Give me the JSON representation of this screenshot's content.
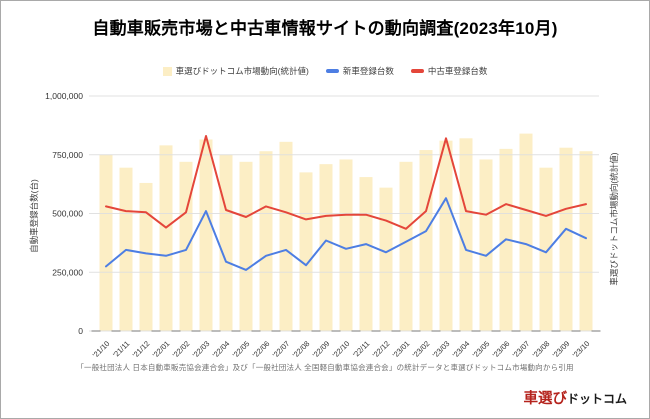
{
  "title": "自動車販売市場と中古車情報サイトの動向調査(2023年10月)",
  "chart_data": {
    "type": "bar+line combo",
    "title": "自動車販売市場と中古車情報サイトの動向調査(2023年10月)",
    "categories": [
      "'21/10",
      "'21/11",
      "'21/12",
      "'22/01",
      "'22/02",
      "'22/03",
      "'22/04",
      "'22/05",
      "'22/06",
      "'22/07",
      "'22/08",
      "'22/09",
      "'22/10",
      "'22/11",
      "'22/12",
      "'23/01",
      "'23/02",
      "'23/03",
      "'23/04",
      "'23/05",
      "'23/06",
      "'23/07",
      "'23/08",
      "'23/09",
      "'23/10"
    ],
    "series": [
      {
        "name": "車選びドットコム市場動向(統計値)",
        "type": "bar",
        "color": "#fceec5",
        "values": [
          750000,
          695000,
          630000,
          790000,
          720000,
          815000,
          750000,
          720000,
          765000,
          805000,
          675000,
          710000,
          730000,
          655000,
          610000,
          720000,
          770000,
          810000,
          820000,
          730000,
          775000,
          840000,
          695000,
          780000,
          765000
        ]
      },
      {
        "name": "新車登録台数",
        "type": "line",
        "color": "#4d7ee3",
        "values": [
          275000,
          345000,
          330000,
          320000,
          345000,
          510000,
          295000,
          260000,
          320000,
          345000,
          280000,
          385000,
          350000,
          370000,
          335000,
          380000,
          425000,
          565000,
          345000,
          320000,
          390000,
          370000,
          335000,
          435000,
          395000
        ]
      },
      {
        "name": "中古車登録台数",
        "type": "line",
        "color": "#e4463a",
        "values": [
          530000,
          510000,
          505000,
          440000,
          505000,
          830000,
          515000,
          485000,
          530000,
          505000,
          475000,
          490000,
          495000,
          495000,
          470000,
          435000,
          510000,
          820000,
          510000,
          495000,
          540000,
          515000,
          490000,
          520000,
          540000
        ]
      }
    ],
    "ylabel_left": "自動車登録台数(台)",
    "ylabel_right": "車選びドットコム市場動向(統計値)",
    "ylim": [
      0,
      1000000
    ],
    "ytick_values": [
      0,
      250000,
      500000,
      750000,
      1000000
    ],
    "ytick_labels": [
      "0",
      "250,000",
      "500,000",
      "750,000",
      "1,000,000"
    ],
    "grid": true,
    "grid_color": "#dedede",
    "tick_color": "#8f8f8f",
    "legend_position": "top"
  },
  "footer": {
    "source": "「一般社団法人 日本自動車販売協会連合会」及び「一般社団法人 全国軽自動車協会連合会」の統計データと車選びドットコム市場動向から引用",
    "logo": {
      "text_red": "車選び",
      "text_black": "ドットコム",
      "color_red": "#b5231d",
      "color_black": "#1a1a1a"
    }
  }
}
